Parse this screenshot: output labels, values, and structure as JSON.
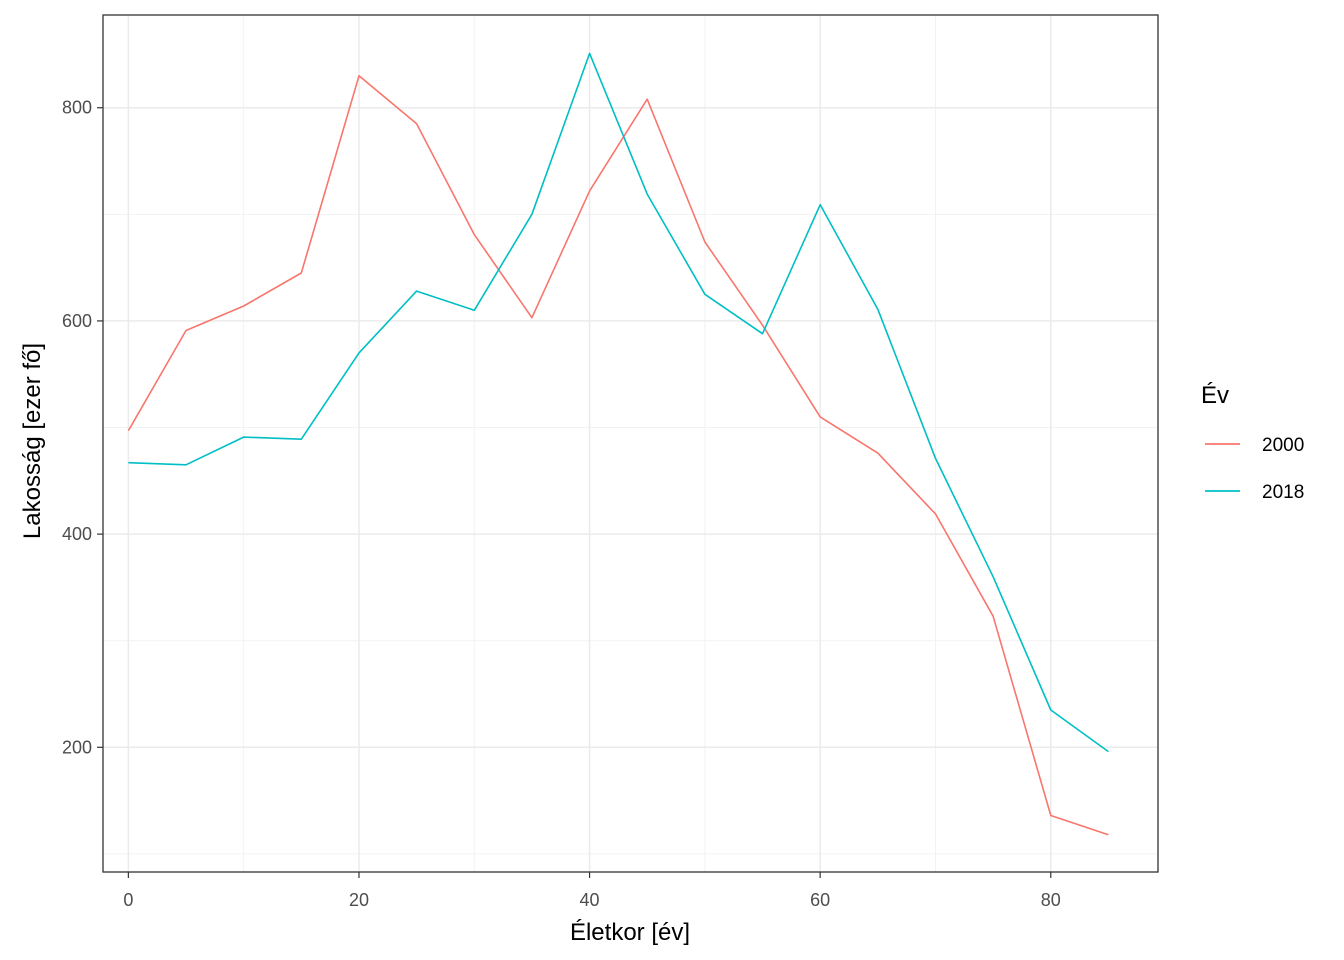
{
  "chart_data": {
    "type": "line",
    "xlabel": "Életkor [év]",
    "ylabel": "Lakosság [ezer fő]",
    "xlim": [
      -2.2,
      89.3
    ],
    "ylim": [
      83,
      887
    ],
    "x_ticks": [
      0,
      20,
      40,
      60,
      80
    ],
    "y_ticks": [
      200,
      400,
      600,
      800
    ],
    "grid": true,
    "legend": {
      "title": "Év",
      "position": "right"
    },
    "x": [
      0,
      5,
      10,
      15,
      20,
      25,
      30,
      35,
      40,
      45,
      50,
      55,
      60,
      65,
      70,
      75,
      80,
      85
    ],
    "series": [
      {
        "name": "2000",
        "color": "#F8766D",
        "values": [
          497,
          591,
          614,
          645,
          830,
          785,
          681,
          603,
          722,
          808,
          674,
          596,
          510,
          476,
          419,
          323,
          136,
          118
        ]
      },
      {
        "name": "2018",
        "color": "#00BFC4",
        "values": [
          467,
          465,
          491,
          489,
          570,
          628,
          610,
          700,
          851,
          719,
          625,
          588,
          709,
          611,
          471,
          360,
          235,
          196
        ]
      }
    ]
  }
}
